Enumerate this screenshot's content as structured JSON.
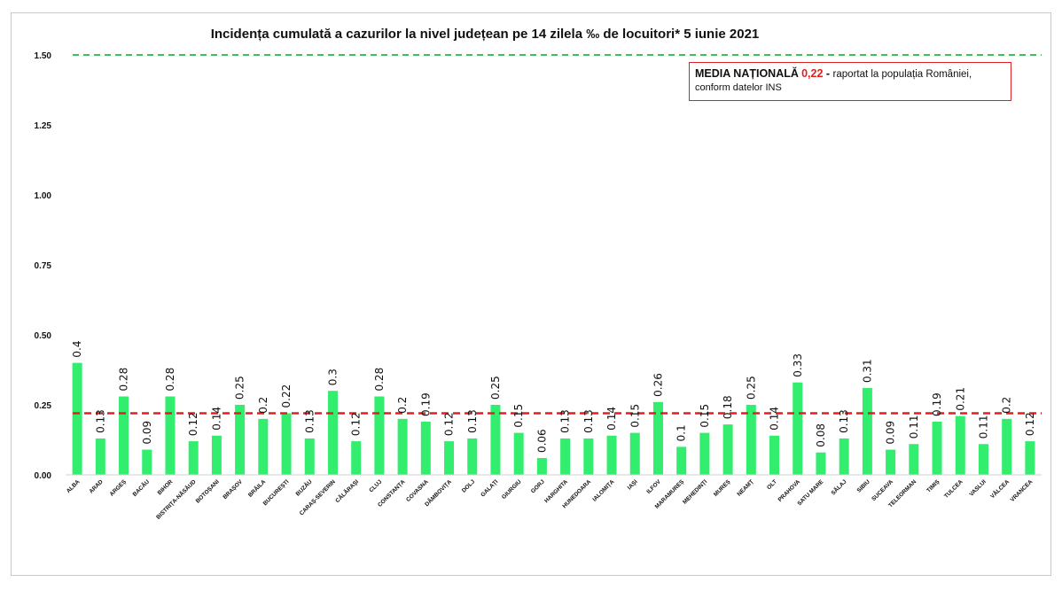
{
  "chart_data": {
    "type": "bar",
    "title": "Incidența cumulată a cazurilor la nivel județean pe 14 zilela ‰ de locuitori* 5 iunie 2021",
    "xlabel": "",
    "ylabel": "",
    "ylim": [
      0,
      1.5
    ],
    "yticks": [
      "0.00",
      "0.25",
      "0.50",
      "0.75",
      "1.00",
      "1.25",
      "1.50"
    ],
    "grid": false,
    "categories": [
      "ALBA",
      "ARAD",
      "ARGEȘ",
      "BACĂU",
      "BIHOR",
      "BISTRIȚA-NĂSĂUD",
      "BOTOȘANI",
      "BRAȘOV",
      "BRĂILA",
      "BUCUREȘTI",
      "BUZĂU",
      "CARAȘ-SEVERIN",
      "CĂLĂRAȘI",
      "CLUJ",
      "CONSTANȚA",
      "COVASNA",
      "DÂMBOVIȚA",
      "DOLJ",
      "GALAȚI",
      "GIURGIU",
      "GORJ",
      "HARGHITA",
      "HUNEDOARA",
      "IALOMIȚA",
      "IAȘI",
      "ILFOV",
      "MARAMUREȘ",
      "MEHEDINȚI",
      "MUREȘ",
      "NEAMȚ",
      "OLT",
      "PRAHOVA",
      "SATU MARE",
      "SĂLAJ",
      "SIBIU",
      "SUCEAVA",
      "TELEORMAN",
      "TIMIȘ",
      "TULCEA",
      "VASLUI",
      "VÂLCEA",
      "VRANCEA"
    ],
    "values": [
      0.4,
      0.13,
      0.28,
      0.09,
      0.28,
      0.12,
      0.14,
      0.25,
      0.2,
      0.22,
      0.13,
      0.3,
      0.12,
      0.28,
      0.2,
      0.19,
      0.12,
      0.13,
      0.25,
      0.15,
      0.06,
      0.13,
      0.13,
      0.14,
      0.15,
      0.26,
      0.1,
      0.15,
      0.18,
      0.25,
      0.14,
      0.33,
      0.08,
      0.13,
      0.31,
      0.09,
      0.11,
      0.19,
      0.21,
      0.11,
      0.2,
      0.12
    ],
    "value_labels": [
      "0.4",
      "0.13",
      "0.28",
      "0.09",
      "0.28",
      "0.12",
      "0.14",
      "0.25",
      "0.2",
      "0.22",
      "0.13",
      "0.3",
      "0.12",
      "0.28",
      "0.2",
      "0.19",
      "0.12",
      "0.13",
      "0.25",
      "0.15",
      "0.06",
      "0.13",
      "0.13",
      "0.14",
      "0.15",
      "0.26",
      "0.1",
      "0.15",
      "0.18",
      "0.25",
      "0.14",
      "0.33",
      "0.08",
      "0.13",
      "0.31",
      "0.09",
      "0.11",
      "0.19",
      "0.21",
      "0.11",
      "0.2",
      "0.12"
    ],
    "reference_lines": [
      {
        "value": 0.22,
        "style": "dashed",
        "color": "#e02020"
      },
      {
        "value": 1.5,
        "style": "dashed",
        "color": "#2db34a"
      }
    ],
    "bar_color": "#33ee6e"
  },
  "note": {
    "label": "MEDIA NAȚIONALĂ",
    "value": "0,22",
    "separator": " - ",
    "text": "raportat la populația României,",
    "line2": "conform datelor INS"
  }
}
